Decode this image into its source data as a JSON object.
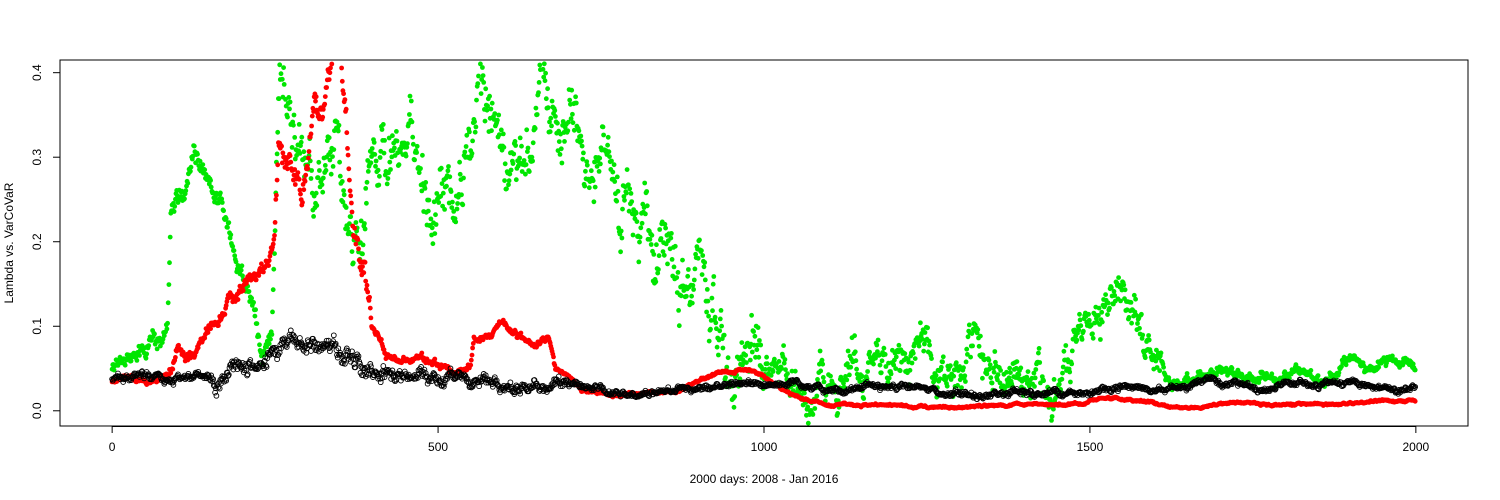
{
  "chart_data": {
    "type": "scatter",
    "title": "",
    "xlabel": "2000 days: 2008 - Jan 2016",
    "ylabel": "Lambda vs. VarCoVaR",
    "xlim": [
      -80,
      2080
    ],
    "ylim": [
      -0.018,
      0.415
    ],
    "x_ticks": [
      0,
      500,
      1000,
      1500,
      2000
    ],
    "y_ticks": [
      0.0,
      0.1,
      0.2,
      0.3,
      0.4
    ],
    "x_tick_labels": [
      "0",
      "500",
      "1000",
      "1500",
      "2000"
    ],
    "y_tick_labels": [
      "0.0",
      "0.1",
      "0.2",
      "0.3",
      "0.4"
    ],
    "grid": false,
    "legend": "none",
    "n_points": 2000,
    "series": [
      {
        "color": "#00e600",
        "marker": "filled-circle",
        "knots": [
          [
            0,
            0.055
          ],
          [
            15,
            0.06
          ],
          [
            30,
            0.075
          ],
          [
            50,
            0.07
          ],
          [
            70,
            0.085
          ],
          [
            85,
            0.09
          ],
          [
            90,
            0.24
          ],
          [
            110,
            0.255
          ],
          [
            125,
            0.3
          ],
          [
            140,
            0.27
          ],
          [
            160,
            0.255
          ],
          [
            180,
            0.23
          ],
          [
            195,
            0.19
          ],
          [
            205,
            0.16
          ],
          [
            215,
            0.13
          ],
          [
            225,
            0.09
          ],
          [
            235,
            0.07
          ],
          [
            245,
            0.09
          ],
          [
            255,
            0.33
          ],
          [
            265,
            0.35
          ],
          [
            280,
            0.28
          ],
          [
            300,
            0.26
          ],
          [
            320,
            0.3
          ],
          [
            340,
            0.33
          ],
          [
            355,
            0.28
          ],
          [
            370,
            0.2
          ],
          [
            385,
            0.27
          ],
          [
            400,
            0.33
          ],
          [
            420,
            0.35
          ],
          [
            440,
            0.34
          ],
          [
            455,
            0.3
          ],
          [
            470,
            0.25
          ],
          [
            490,
            0.22
          ],
          [
            510,
            0.26
          ],
          [
            530,
            0.28
          ],
          [
            550,
            0.3
          ],
          [
            565,
            0.34
          ],
          [
            580,
            0.36
          ],
          [
            600,
            0.33
          ],
          [
            620,
            0.31
          ],
          [
            640,
            0.32
          ],
          [
            660,
            0.35
          ],
          [
            680,
            0.38
          ],
          [
            700,
            0.36
          ],
          [
            715,
            0.33
          ],
          [
            730,
            0.28
          ],
          [
            750,
            0.3
          ],
          [
            770,
            0.25
          ],
          [
            790,
            0.24
          ],
          [
            810,
            0.21
          ],
          [
            830,
            0.22
          ],
          [
            845,
            0.19
          ],
          [
            860,
            0.19
          ],
          [
            875,
            0.15
          ],
          [
            890,
            0.13
          ],
          [
            910,
            0.11
          ],
          [
            930,
            0.09
          ],
          [
            950,
            0.075
          ],
          [
            975,
            0.07
          ],
          [
            1000,
            0.06
          ],
          [
            1040,
            0.055
          ],
          [
            1080,
            0.05
          ],
          [
            1120,
            0.05
          ],
          [
            1160,
            0.055
          ],
          [
            1200,
            0.05
          ],
          [
            1240,
            0.065
          ],
          [
            1280,
            0.06
          ],
          [
            1320,
            0.055
          ],
          [
            1360,
            0.05
          ],
          [
            1400,
            0.04
          ],
          [
            1440,
            0.055
          ],
          [
            1470,
            0.065
          ],
          [
            1480,
            0.11
          ],
          [
            1510,
            0.1
          ],
          [
            1540,
            0.12
          ],
          [
            1570,
            0.1
          ],
          [
            1600,
            0.08
          ],
          [
            1620,
            0.035
          ],
          [
            1660,
            0.04
          ],
          [
            1700,
            0.045
          ],
          [
            1740,
            0.035
          ],
          [
            1780,
            0.04
          ],
          [
            1820,
            0.04
          ],
          [
            1860,
            0.035
          ],
          [
            1900,
            0.055
          ],
          [
            1950,
            0.055
          ],
          [
            2000,
            0.055
          ]
        ],
        "noise": [
          0.012,
          0.015,
          0.045,
          0.03,
          0.028,
          0.008
        ],
        "noise_breaks": [
          85,
          250,
          1000,
          1470,
          1610
        ]
      },
      {
        "color": "#ff0000",
        "marker": "filled-circle",
        "knots": [
          [
            0,
            0.035
          ],
          [
            20,
            0.038
          ],
          [
            40,
            0.037
          ],
          [
            60,
            0.035
          ],
          [
            80,
            0.04
          ],
          [
            100,
            0.06
          ],
          [
            120,
            0.075
          ],
          [
            140,
            0.085
          ],
          [
            160,
            0.1
          ],
          [
            180,
            0.125
          ],
          [
            200,
            0.14
          ],
          [
            220,
            0.16
          ],
          [
            240,
            0.17
          ],
          [
            250,
            0.2
          ],
          [
            255,
            0.32
          ],
          [
            270,
            0.3
          ],
          [
            290,
            0.27
          ],
          [
            300,
            0.27
          ],
          [
            310,
            0.35
          ],
          [
            330,
            0.38
          ],
          [
            350,
            0.41
          ],
          [
            360,
            0.33
          ],
          [
            370,
            0.22
          ],
          [
            380,
            0.2
          ],
          [
            390,
            0.15
          ],
          [
            400,
            0.1
          ],
          [
            420,
            0.07
          ],
          [
            450,
            0.065
          ],
          [
            470,
            0.06
          ],
          [
            500,
            0.055
          ],
          [
            530,
            0.05
          ],
          [
            550,
            0.055
          ],
          [
            555,
            0.085
          ],
          [
            580,
            0.09
          ],
          [
            600,
            0.1
          ],
          [
            610,
            0.085
          ],
          [
            640,
            0.08
          ],
          [
            670,
            0.09
          ],
          [
            680,
            0.05
          ],
          [
            700,
            0.04
          ],
          [
            720,
            0.025
          ],
          [
            760,
            0.02
          ],
          [
            800,
            0.02
          ],
          [
            840,
            0.02
          ],
          [
            870,
            0.025
          ],
          [
            900,
            0.035
          ],
          [
            930,
            0.045
          ],
          [
            960,
            0.05
          ],
          [
            990,
            0.045
          ],
          [
            1000,
            0.04
          ],
          [
            1030,
            0.025
          ],
          [
            1060,
            0.015
          ],
          [
            1100,
            0.008
          ],
          [
            1150,
            0.007
          ],
          [
            1200,
            0.006
          ],
          [
            1250,
            0.005
          ],
          [
            1300,
            0.005
          ],
          [
            1350,
            0.006
          ],
          [
            1400,
            0.007
          ],
          [
            1450,
            0.007
          ],
          [
            1490,
            0.008
          ],
          [
            1500,
            0.012
          ],
          [
            1540,
            0.015
          ],
          [
            1580,
            0.012
          ],
          [
            1620,
            0.005
          ],
          [
            1660,
            0.005
          ],
          [
            1700,
            0.007
          ],
          [
            1760,
            0.009
          ],
          [
            1820,
            0.008
          ],
          [
            1880,
            0.008
          ],
          [
            1920,
            0.01
          ],
          [
            1960,
            0.012
          ],
          [
            2000,
            0.013
          ]
        ],
        "noise": [
          0.004,
          0.008,
          0.02,
          0.005,
          0.002,
          0.0015
        ],
        "noise_breaks": [
          85,
          250,
          400,
          680,
          1000
        ]
      },
      {
        "color": "#000000",
        "marker": "open-circle",
        "knots": [
          [
            0,
            0.037
          ],
          [
            30,
            0.04
          ],
          [
            60,
            0.038
          ],
          [
            90,
            0.035
          ],
          [
            120,
            0.038
          ],
          [
            150,
            0.045
          ],
          [
            180,
            0.055
          ],
          [
            210,
            0.065
          ],
          [
            240,
            0.07
          ],
          [
            270,
            0.09
          ],
          [
            300,
            0.095
          ],
          [
            330,
            0.085
          ],
          [
            360,
            0.07
          ],
          [
            390,
            0.055
          ],
          [
            420,
            0.045
          ],
          [
            450,
            0.04
          ],
          [
            500,
            0.038
          ],
          [
            550,
            0.036
          ],
          [
            600,
            0.035
          ],
          [
            650,
            0.03
          ],
          [
            700,
            0.028
          ],
          [
            750,
            0.025
          ],
          [
            800,
            0.022
          ],
          [
            850,
            0.022
          ],
          [
            900,
            0.025
          ],
          [
            950,
            0.032
          ],
          [
            1000,
            0.035
          ],
          [
            1050,
            0.032
          ],
          [
            1100,
            0.028
          ],
          [
            1150,
            0.025
          ],
          [
            1200,
            0.028
          ],
          [
            1250,
            0.025
          ],
          [
            1300,
            0.022
          ],
          [
            1350,
            0.02
          ],
          [
            1400,
            0.022
          ],
          [
            1450,
            0.022
          ],
          [
            1500,
            0.025
          ],
          [
            1550,
            0.025
          ],
          [
            1600,
            0.028
          ],
          [
            1650,
            0.03
          ],
          [
            1700,
            0.03
          ],
          [
            1750,
            0.03
          ],
          [
            1800,
            0.032
          ],
          [
            1850,
            0.03
          ],
          [
            1900,
            0.032
          ],
          [
            1950,
            0.03
          ],
          [
            2000,
            0.03
          ]
        ],
        "noise": [
          0.005,
          0.012,
          0.008,
          0.004,
          0.004,
          0.004
        ],
        "noise_breaks": [
          150,
          420,
          700,
          1000,
          1500
        ]
      }
    ]
  }
}
